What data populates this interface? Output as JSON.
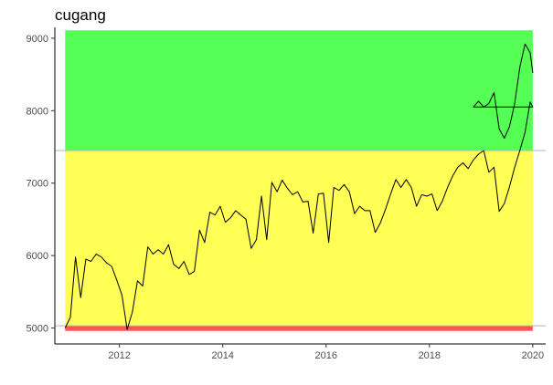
{
  "chart_data": {
    "type": "line",
    "title": "cugang",
    "xlabel": "",
    "ylabel": "",
    "xlim": [
      2010.75,
      2020.25
    ],
    "ylim": [
      4780,
      9150
    ],
    "x_ticks": [
      2012,
      2014,
      2016,
      2018,
      2020
    ],
    "x_tick_labels": [
      "2012",
      "2014",
      "2016",
      "2018",
      "2020"
    ],
    "y_ticks": [
      5000,
      6000,
      7000,
      8000,
      9000
    ],
    "y_tick_labels": [
      "5000",
      "6000",
      "7000",
      "8000",
      "9000"
    ],
    "grid": false,
    "line_color": "#000000",
    "bands": [
      {
        "name": "high",
        "ymin": 7450,
        "ymax": 9110,
        "color": "#55ff55"
      },
      {
        "name": "mid",
        "ymin": 5030,
        "ymax": 7450,
        "color": "#ffff55"
      },
      {
        "name": "low",
        "ymin": 4960,
        "ymax": 5030,
        "color": "#ff5555"
      }
    ],
    "band_x_range": [
      2010.95,
      2020.0
    ],
    "reference_lines": [
      7450,
      5030
    ],
    "reference_line_color": "#b3b3b3",
    "series": [
      {
        "x": [
          2010.95,
          2011.05,
          2011.15,
          2011.25,
          2011.35,
          2011.45,
          2011.55,
          2011.65,
          2011.75,
          2011.85,
          2011.95,
          2012.05,
          2012.15,
          2012.25,
          2012.35,
          2012.45,
          2012.55,
          2012.65,
          2012.75,
          2012.85,
          2012.95,
          2013.05,
          2013.15,
          2013.25,
          2013.35,
          2013.45,
          2013.55,
          2013.65,
          2013.75,
          2013.85,
          2013.95,
          2014.05,
          2014.15,
          2014.25,
          2014.35,
          2014.45,
          2014.55,
          2014.65,
          2014.75,
          2014.85,
          2014.95,
          2015.05,
          2015.15,
          2015.25,
          2015.35,
          2015.45,
          2015.55,
          2015.65,
          2015.75,
          2015.85,
          2015.95,
          2016.05,
          2016.15,
          2016.25,
          2016.35,
          2016.45,
          2016.55,
          2016.65,
          2016.75,
          2016.85,
          2016.95,
          2017.05,
          2017.15,
          2017.25,
          2017.35,
          2017.45,
          2017.55,
          2017.65,
          2017.75,
          2017.85,
          2017.95,
          2018.05,
          2018.15,
          2018.25,
          2018.35,
          2018.45,
          2018.55,
          2018.65,
          2018.75,
          2018.85,
          2018.95,
          2019.05,
          2019.15,
          2019.25,
          2019.35,
          2019.45,
          2019.55,
          2019.65,
          2019.75,
          2019.85,
          2019.95,
          2020.0
        ],
        "y": [
          5000,
          5150,
          5980,
          5420,
          5950,
          5920,
          6020,
          5980,
          5900,
          5850,
          5660,
          5450,
          4980,
          5220,
          5650,
          5580,
          6120,
          6020,
          6080,
          6020,
          6150,
          5880,
          5820,
          5920,
          5740,
          5780,
          6350,
          6180,
          6600,
          6560,
          6680,
          6460,
          6520,
          6620,
          6560,
          6500,
          6100,
          6220,
          6820,
          6220,
          7010,
          6880,
          7040,
          6930,
          6840,
          6880,
          6740,
          6750,
          6310,
          6850,
          6860,
          6180,
          6940,
          6900,
          6980,
          6880,
          6580,
          6680,
          6620,
          6620,
          6320,
          6450,
          6640,
          6850,
          7050,
          6940,
          7050,
          6940,
          6680,
          6840,
          6820,
          6850,
          6620,
          6750,
          6940,
          7100,
          7220,
          7280,
          7200,
          7320,
          7400,
          7450,
          7150,
          7220,
          6610,
          6720,
          6950,
          7220,
          7450,
          7700,
          8120,
          8050
        ],
        "x2": [
          2018.75,
          2018.85,
          2018.95,
          2019.05,
          2019.15,
          2019.25,
          2019.35,
          2019.45,
          2019.55,
          2019.65,
          2019.75,
          2019.85,
          2019.95,
          2020.0
        ],
        "y2": [
          8120,
          8050,
          8130,
          8050,
          8100,
          8250,
          7750,
          7620,
          7780,
          8100,
          8600,
          8920,
          8800,
          8520
        ]
      }
    ]
  }
}
